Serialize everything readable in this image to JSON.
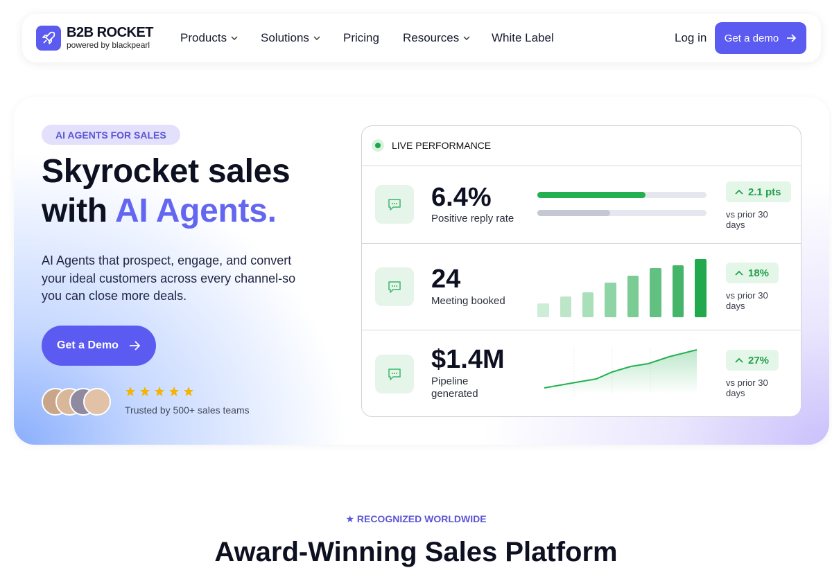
{
  "nav": {
    "logo_title": "B2B ROCKET",
    "logo_subtitle": "powered by blackpearl",
    "links": [
      "Products",
      "Solutions",
      "Pricing",
      "Resources",
      "White Label"
    ],
    "login": "Log in",
    "cta": "Get a demo"
  },
  "hero": {
    "badge": "AI AGENTS FOR SALES",
    "title_line1": "Skyrocket sales",
    "title_line2": "with",
    "title_highlight": "AI Agents.",
    "description": "AI Agents that prospect, engage, and convert your ideal customers across every channel-so you can close more deals.",
    "cta": "Get a Demo",
    "trust": "Trusted by 500+ sales teams"
  },
  "panel": {
    "title": "LIVE PERFORMANCE",
    "metrics": [
      {
        "value": "6.4%",
        "label": "Positive reply rate",
        "change": "2.1 pts",
        "note": "vs prior 30 days"
      },
      {
        "value": "24",
        "label": "Meeting booked",
        "change": "18%",
        "note": "vs prior 30 days"
      },
      {
        "value": "$1.4M",
        "label": "Pipeline generated",
        "change": "27%",
        "note": "vs prior 30 days"
      }
    ]
  },
  "awards": {
    "eyebrow": "★ RECOGNIZED WORLDWIDE",
    "title": "Award-Winning Sales Platform"
  }
}
